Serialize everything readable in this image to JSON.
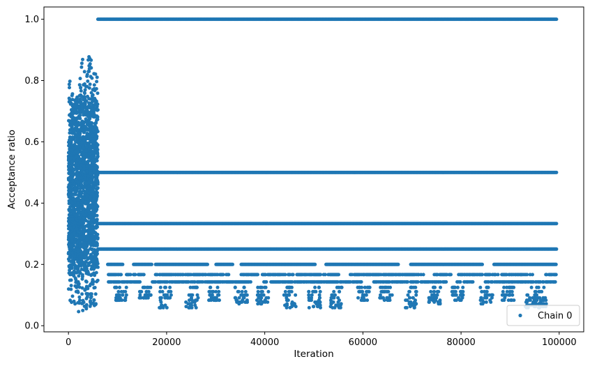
{
  "chart_data": {
    "type": "scatter",
    "xlabel": "Iteration",
    "ylabel": "Acceptance ratio",
    "xlim": [
      -5000,
      105000
    ],
    "ylim": [
      -0.02,
      1.04
    ],
    "xticks": [
      0,
      20000,
      40000,
      60000,
      80000,
      100000
    ],
    "xtick_labels": [
      "0",
      "20000",
      "40000",
      "60000",
      "80000",
      "100000"
    ],
    "yticks": [
      0.0,
      0.2,
      0.4,
      0.6,
      0.8,
      1.0
    ],
    "ytick_labels": [
      "0.0",
      "0.2",
      "0.4",
      "0.6",
      "0.8",
      "1.0"
    ],
    "grid": false,
    "legend": {
      "position": "lower-right",
      "entries": [
        "Chain 0"
      ]
    },
    "series": [
      {
        "name": "Chain 0",
        "color": "#1f77b4",
        "marker": "circle",
        "burn_in": {
          "x_range": [
            0,
            6000
          ],
          "y_range": [
            0.04,
            0.89
          ],
          "x": [
            0,
            250,
            500,
            750,
            1000,
            1500,
            2000,
            2500,
            3000,
            3500,
            4000,
            4500,
            5000,
            5500,
            5900
          ],
          "y_min": [
            0.04,
            0.06,
            0.07,
            0.08,
            0.06,
            0.05,
            0.04,
            0.04,
            0.05,
            0.05,
            0.06,
            0.06,
            0.06,
            0.06,
            0.06
          ],
          "y_max": [
            0.8,
            0.81,
            0.8,
            0.79,
            0.75,
            0.74,
            0.79,
            0.87,
            0.88,
            0.8,
            0.89,
            0.89,
            0.84,
            0.85,
            0.84
          ]
        },
        "stationary_levels": [
          {
            "y": 1.0,
            "x_range": [
              6000,
              99500
            ]
          },
          {
            "y": 0.5,
            "x_range": [
              6000,
              99500
            ]
          },
          {
            "y": 0.3333,
            "x_range": [
              6000,
              99500
            ]
          },
          {
            "y": 0.25,
            "x_range": [
              6000,
              99500
            ]
          },
          {
            "y": 0.2,
            "x_range": [
              8000,
              99500
            ]
          },
          {
            "y": 0.1667,
            "x_range": [
              8000,
              99500
            ]
          },
          {
            "y": 0.1429,
            "x_range": [
              8000,
              99500
            ]
          }
        ],
        "low_excursions": [
          {
            "x_center": 11000,
            "y_min": 0.08
          },
          {
            "x_center": 16000,
            "y_min": 0.09
          },
          {
            "x_center": 20000,
            "y_min": 0.06
          },
          {
            "x_center": 25500,
            "y_min": 0.06
          },
          {
            "x_center": 30000,
            "y_min": 0.08
          },
          {
            "x_center": 35500,
            "y_min": 0.07
          },
          {
            "x_center": 40000,
            "y_min": 0.07
          },
          {
            "x_center": 45500,
            "y_min": 0.06
          },
          {
            "x_center": 50500,
            "y_min": 0.06
          },
          {
            "x_center": 55000,
            "y_min": 0.06
          },
          {
            "x_center": 60500,
            "y_min": 0.08
          },
          {
            "x_center": 65000,
            "y_min": 0.08
          },
          {
            "x_center": 70000,
            "y_min": 0.05
          },
          {
            "x_center": 75000,
            "y_min": 0.07
          },
          {
            "x_center": 79500,
            "y_min": 0.08
          },
          {
            "x_center": 85500,
            "y_min": 0.07
          },
          {
            "x_center": 90000,
            "y_min": 0.08
          },
          {
            "x_center": 94500,
            "y_min": 0.06
          },
          {
            "x_center": 96500,
            "y_min": 0.06
          }
        ]
      }
    ]
  }
}
